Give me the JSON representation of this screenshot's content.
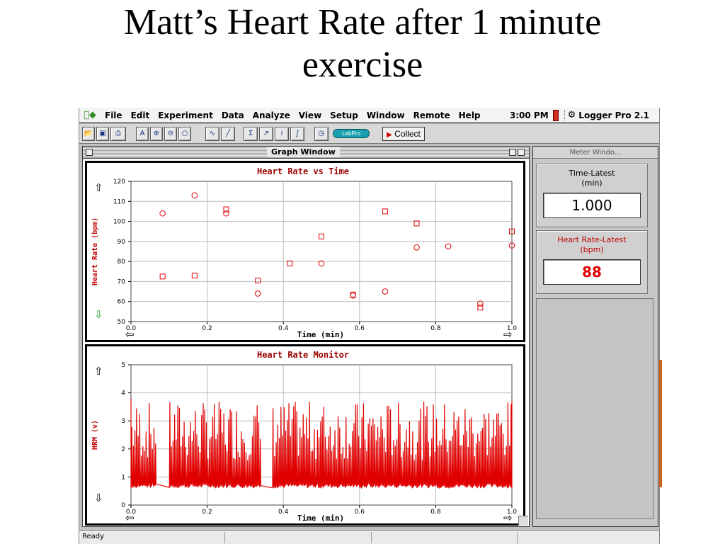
{
  "slide": {
    "title_line1": "Matt’s Heart Rate after 1 minute",
    "title_line2": "exercise"
  },
  "menubar": {
    "items": [
      "File",
      "Edit",
      "Experiment",
      "Data",
      "Analyze",
      "View",
      "Setup",
      "Window",
      "Remote",
      "Help"
    ],
    "clock": "3:00 PM",
    "app_name": "Logger Pro 2.1"
  },
  "toolbar": {
    "collect_label": "Collect",
    "labpro_label": "LabPro",
    "icons": [
      "open-icon",
      "save-icon",
      "print-icon",
      "autoscale-icon",
      "zoom-in-icon",
      "zoom-out-icon",
      "zoom-reset-icon",
      "examine-icon",
      "tangent-icon",
      "statistics-icon",
      "linear-fit-icon",
      "curve-fit-icon",
      "integral-icon",
      "timer-icon"
    ]
  },
  "graph_window": {
    "title": "Graph Window"
  },
  "meter_window": {
    "title": "Meter Windo...",
    "meters": [
      {
        "label_line1": "Time-Latest",
        "label_line2": "(min)",
        "value": "1.000"
      },
      {
        "label_line1": "Heart Rate-Latest",
        "label_line2": "(bpm)",
        "value": "88"
      }
    ]
  },
  "status": {
    "text": "Ready"
  },
  "chart_data": [
    {
      "type": "scatter",
      "title": "Heart Rate vs Time",
      "xlabel": "Time (min)",
      "ylabel": "Heart Rate (bpm)",
      "xlim": [
        0.0,
        1.0
      ],
      "ylim": [
        50,
        120
      ],
      "xticks": [
        "0.0",
        "0.2",
        "0.4",
        "0.6",
        "0.8",
        "1.0"
      ],
      "yticks": [
        "50",
        "60",
        "70",
        "80",
        "90",
        "100",
        "110",
        "120"
      ],
      "grid": true,
      "series": [
        {
          "marker": "circle",
          "color": "#e00000",
          "points": [
            [
              0.083,
              104
            ],
            [
              0.167,
              113
            ],
            [
              0.25,
              104
            ],
            [
              0.333,
              64
            ],
            [
              0.5,
              79
            ],
            [
              0.583,
              63
            ],
            [
              0.667,
              65
            ],
            [
              0.75,
              87
            ],
            [
              0.833,
              87.5
            ],
            [
              0.917,
              59
            ],
            [
              1.0,
              88
            ]
          ]
        },
        {
          "marker": "square",
          "color": "#e00000",
          "points": [
            [
              0.083,
              72.5
            ],
            [
              0.167,
              73
            ],
            [
              0.25,
              106
            ],
            [
              0.333,
              70.5
            ],
            [
              0.417,
              79
            ],
            [
              0.5,
              92.5
            ],
            [
              0.583,
              63.5
            ],
            [
              0.667,
              105
            ],
            [
              0.75,
              99
            ],
            [
              0.917,
              57
            ],
            [
              1.0,
              95
            ]
          ]
        }
      ]
    },
    {
      "type": "line",
      "title": "Heart Rate Monitor",
      "xlabel": "Time (min)",
      "ylabel": "HRM (v)",
      "xlim": [
        0.0,
        1.0
      ],
      "ylim": [
        0,
        5
      ],
      "xticks": [
        "0.0",
        "0.2",
        "0.4",
        "0.6",
        "0.8",
        "1.0"
      ],
      "yticks": [
        "0",
        "1",
        "2",
        "3",
        "4",
        "5"
      ],
      "grid": true,
      "series": [
        {
          "color": "#e00000",
          "baseline": 0.6,
          "peak_high": 3.7,
          "peak_low": 0.6,
          "x_start": 0.0,
          "x_end": 1.0,
          "peak_count": 240
        }
      ]
    }
  ]
}
